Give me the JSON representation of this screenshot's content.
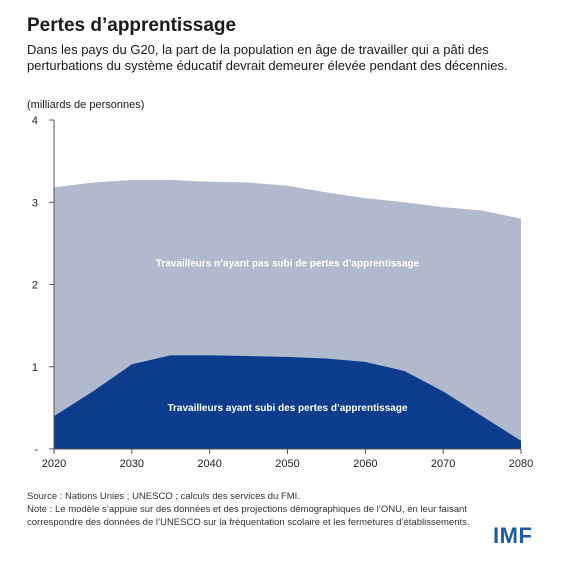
{
  "header": {
    "title": "Pertes d’apprentissage",
    "subtitle": "Dans les pays du G20, la part de la population en âge de travailler qui a pâti des perturbations du système éducatif devrait demeurer élevée pendant des décennies.",
    "unit": "(milliards de personnes)"
  },
  "colors": {
    "not_affected": "#b0bacc",
    "affected": "#0b3d8c",
    "axis": "#555555",
    "logo": "#1e5aa0"
  },
  "chart_data": {
    "type": "area",
    "stacked": true,
    "x": [
      2020,
      2025,
      2030,
      2035,
      2040,
      2045,
      2050,
      2055,
      2060,
      2065,
      2070,
      2075,
      2080
    ],
    "series": [
      {
        "name": "Travailleurs ayant subi des pertes d’apprentissage",
        "values": [
          0.4,
          0.7,
          1.03,
          1.14,
          1.14,
          1.13,
          1.12,
          1.1,
          1.06,
          0.95,
          0.7,
          0.4,
          0.1
        ]
      },
      {
        "name": "Travailleurs n’ayant pas subi de pertes d’apprentissage",
        "values": [
          2.78,
          2.54,
          2.24,
          2.13,
          2.11,
          2.11,
          2.08,
          2.02,
          1.99,
          2.05,
          2.24,
          2.5,
          2.7
        ]
      }
    ],
    "totals": [
      3.18,
      3.24,
      3.27,
      3.27,
      3.25,
      3.24,
      3.2,
      3.12,
      3.05,
      3.0,
      2.94,
      2.9,
      2.8
    ],
    "xticks": [
      "2020",
      "2030",
      "2040",
      "2050",
      "2060",
      "2070",
      "2080"
    ],
    "yticks": [
      "-",
      "1",
      "2",
      "3",
      "4"
    ],
    "xlim": [
      2020,
      2080
    ],
    "ylim": [
      0,
      4
    ],
    "labels_on_chart": true
  },
  "footer": {
    "source": "Source : Nations Unies ; UNESCO ; calculs des services du FMI.",
    "note": "Note : Le modèle s’appuie sur des données et des projections démographiques de l’ONU, en leur faisant correspondre des données de l’UNESCO sur la fréquentation scolaire et les fermetures d’établissements.",
    "logo": "IMF"
  }
}
